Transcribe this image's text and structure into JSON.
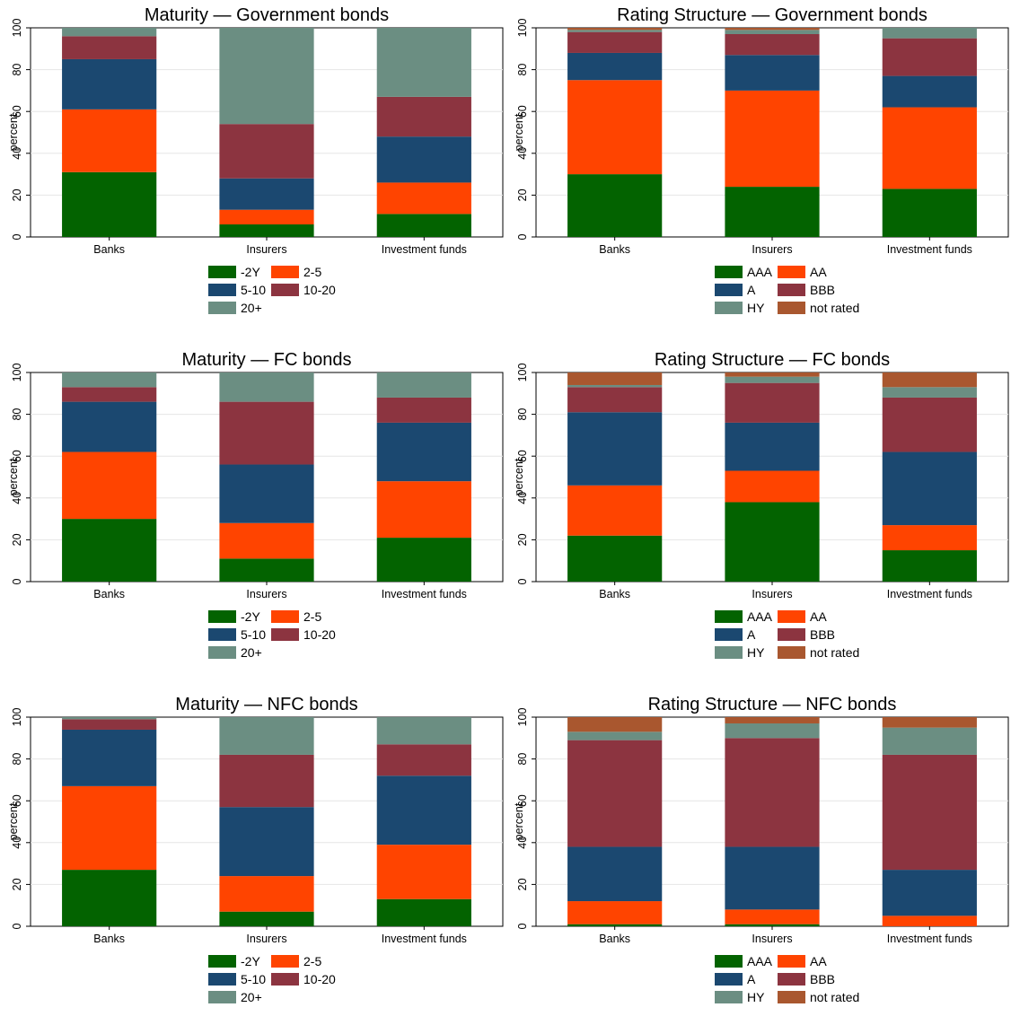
{
  "colors": {
    "green": "#036300",
    "orange": "#ff4400",
    "navy": "#1b4870",
    "maroon": "#8c3440",
    "teal": "#6b8e82",
    "brown": "#a9572f",
    "grid": "#e6e6e6",
    "axis": "#000000"
  },
  "chart_data": [
    {
      "type": "bar",
      "stacked": true,
      "title": "Maturity — Government bonds",
      "ylabel": "percent",
      "ylim": [
        0,
        100
      ],
      "yticks": [
        "0",
        "20",
        "40",
        "60",
        "80",
        "100"
      ],
      "categories": [
        "Banks",
        "Insurers",
        "Investment funds"
      ],
      "series": [
        {
          "name": "-2Y",
          "color": "#036300",
          "values": [
            31,
            6,
            11
          ]
        },
        {
          "name": "2-5",
          "color": "#ff4400",
          "values": [
            30,
            7,
            15
          ]
        },
        {
          "name": "5-10",
          "color": "#1b4870",
          "values": [
            24,
            15,
            22
          ]
        },
        {
          "name": "10-20",
          "color": "#8c3440",
          "values": [
            11,
            26,
            19
          ]
        },
        {
          "name": "20+",
          "color": "#6b8e82",
          "values": [
            4,
            46,
            33
          ]
        }
      ],
      "legend_position": "bottom"
    },
    {
      "type": "bar",
      "stacked": true,
      "title": "Rating Structure — Government bonds",
      "ylabel": "percent",
      "ylim": [
        0,
        100
      ],
      "yticks": [
        "0",
        "20",
        "40",
        "60",
        "80",
        "100"
      ],
      "categories": [
        "Banks",
        "Insurers",
        "Investment funds"
      ],
      "series": [
        {
          "name": "AAA",
          "color": "#036300",
          "values": [
            30,
            24,
            23
          ]
        },
        {
          "name": "AA",
          "color": "#ff4400",
          "values": [
            45,
            46,
            39
          ]
        },
        {
          "name": "A",
          "color": "#1b4870",
          "values": [
            13,
            17,
            15
          ]
        },
        {
          "name": "BBB",
          "color": "#8c3440",
          "values": [
            10,
            10,
            18
          ]
        },
        {
          "name": "HY",
          "color": "#6b8e82",
          "values": [
            1,
            2,
            5
          ]
        },
        {
          "name": "not rated",
          "color": "#a9572f",
          "values": [
            1,
            1,
            0
          ]
        }
      ],
      "legend_position": "bottom"
    },
    {
      "type": "bar",
      "stacked": true,
      "title": "Maturity — FC bonds",
      "ylabel": "percent",
      "ylim": [
        0,
        100
      ],
      "yticks": [
        "0",
        "20",
        "40",
        "60",
        "80",
        "100"
      ],
      "categories": [
        "Banks",
        "Insurers",
        "Investment funds"
      ],
      "series": [
        {
          "name": "-2Y",
          "color": "#036300",
          "values": [
            30,
            11,
            21
          ]
        },
        {
          "name": "2-5",
          "color": "#ff4400",
          "values": [
            32,
            17,
            27
          ]
        },
        {
          "name": "5-10",
          "color": "#1b4870",
          "values": [
            24,
            28,
            28
          ]
        },
        {
          "name": "10-20",
          "color": "#8c3440",
          "values": [
            7,
            30,
            12
          ]
        },
        {
          "name": "20+",
          "color": "#6b8e82",
          "values": [
            7,
            14,
            12
          ]
        }
      ],
      "legend_position": "bottom"
    },
    {
      "type": "bar",
      "stacked": true,
      "title": "Rating Structure — FC bonds",
      "ylabel": "percent",
      "ylim": [
        0,
        100
      ],
      "yticks": [
        "0",
        "20",
        "40",
        "60",
        "80",
        "100"
      ],
      "categories": [
        "Banks",
        "Insurers",
        "Investment funds"
      ],
      "series": [
        {
          "name": "AAA",
          "color": "#036300",
          "values": [
            22,
            38,
            15
          ]
        },
        {
          "name": "AA",
          "color": "#ff4400",
          "values": [
            24,
            15,
            12
          ]
        },
        {
          "name": "A",
          "color": "#1b4870",
          "values": [
            35,
            23,
            35
          ]
        },
        {
          "name": "BBB",
          "color": "#8c3440",
          "values": [
            12,
            19,
            26
          ]
        },
        {
          "name": "HY",
          "color": "#6b8e82",
          "values": [
            1,
            3,
            5
          ]
        },
        {
          "name": "not rated",
          "color": "#a9572f",
          "values": [
            6,
            2,
            7
          ]
        }
      ],
      "legend_position": "bottom"
    },
    {
      "type": "bar",
      "stacked": true,
      "title": "Maturity — NFC bonds",
      "ylabel": "percent",
      "ylim": [
        0,
        100
      ],
      "yticks": [
        "0",
        "20",
        "40",
        "60",
        "80",
        "100"
      ],
      "categories": [
        "Banks",
        "Insurers",
        "Investment funds"
      ],
      "series": [
        {
          "name": "-2Y",
          "color": "#036300",
          "values": [
            27,
            7,
            13
          ]
        },
        {
          "name": "2-5",
          "color": "#ff4400",
          "values": [
            40,
            17,
            26
          ]
        },
        {
          "name": "5-10",
          "color": "#1b4870",
          "values": [
            27,
            33,
            33
          ]
        },
        {
          "name": "10-20",
          "color": "#8c3440",
          "values": [
            5,
            25,
            15
          ]
        },
        {
          "name": "20+",
          "color": "#6b8e82",
          "values": [
            1,
            18,
            13
          ]
        }
      ],
      "legend_position": "bottom"
    },
    {
      "type": "bar",
      "stacked": true,
      "title": "Rating Structure — NFC bonds",
      "ylabel": "percent",
      "ylim": [
        0,
        100
      ],
      "yticks": [
        "0",
        "20",
        "40",
        "60",
        "80",
        "100"
      ],
      "categories": [
        "Banks",
        "Insurers",
        "Investment funds"
      ],
      "series": [
        {
          "name": "AAA",
          "color": "#036300",
          "values": [
            1,
            1,
            0
          ]
        },
        {
          "name": "AA",
          "color": "#ff4400",
          "values": [
            11,
            7,
            5
          ]
        },
        {
          "name": "A",
          "color": "#1b4870",
          "values": [
            26,
            30,
            22
          ]
        },
        {
          "name": "BBB",
          "color": "#8c3440",
          "values": [
            51,
            52,
            55
          ]
        },
        {
          "name": "HY",
          "color": "#6b8e82",
          "values": [
            4,
            7,
            13
          ]
        },
        {
          "name": "not rated",
          "color": "#a9572f",
          "values": [
            7,
            3,
            5
          ]
        }
      ],
      "legend_position": "bottom"
    }
  ]
}
